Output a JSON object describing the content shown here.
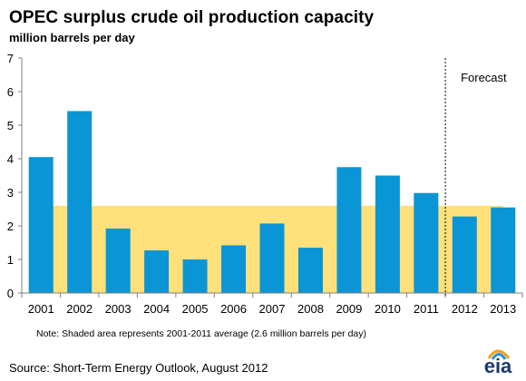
{
  "title": "OPEC surplus crude oil production capacity",
  "subtitle": "million barrels per day",
  "note": "Note: Shaded area represents 2001-2011  average (2.6 million barrels per day)",
  "source": "Source: Short-Term Energy Outlook, August 2012",
  "logo": {
    "text": "eia"
  },
  "colors": {
    "bar": "#0a95d6",
    "shade": "#ffe07a",
    "axis": "#7f7f7f",
    "divider": "#000000"
  },
  "chart_data": {
    "type": "bar",
    "categories": [
      "2001",
      "2002",
      "2003",
      "2004",
      "2005",
      "2006",
      "2007",
      "2008",
      "2009",
      "2010",
      "2011",
      "2012",
      "2013"
    ],
    "values": [
      4.05,
      5.42,
      1.92,
      1.27,
      1.0,
      1.42,
      2.07,
      1.35,
      3.75,
      3.5,
      2.98,
      2.28,
      2.55
    ],
    "ylim": [
      0,
      7
    ],
    "yticks": [
      "0",
      "1",
      "2",
      "3",
      "4",
      "5",
      "6",
      "7"
    ],
    "average": 2.6,
    "average_range": [
      "2001",
      "2013"
    ],
    "forecast_start": "2012",
    "forecast_label": "Forecast",
    "grid": false,
    "legend": "none"
  }
}
